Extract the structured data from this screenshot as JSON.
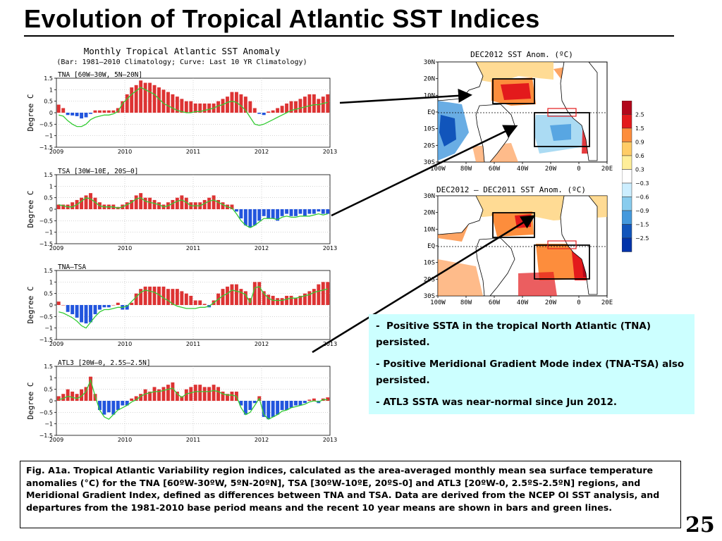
{
  "slide": {
    "title": "Evolution of Tropical Atlantic SST Indices",
    "page_number": "25"
  },
  "left_figure": {
    "title": "Monthly Tropical Atlantic SST Anomaly",
    "subtitle": "(Bar: 1981–2010 Climatology; Curve: Last 10 YR Climatology)",
    "ylabel": "Degree C"
  },
  "chart_data": [
    {
      "type": "bar",
      "panel_label": "TNA [60W–30W, 5N–20N]",
      "ylabel": "Degree C",
      "ylim": [
        -1.5,
        1.5
      ],
      "yticks": [
        1.5,
        1,
        0.5,
        0,
        -0.5,
        -1,
        -1.5
      ],
      "ytick_labels": [
        "1.5",
        "1",
        "0.5",
        "0",
        "−0.5",
        "−1",
        "−1.5"
      ],
      "xticks": [
        "2009",
        "2010",
        "2011",
        "2012",
        "2013"
      ],
      "grid": true,
      "positive_color": "#dd3333",
      "negative_color": "#2255dd",
      "line_color": "#33cc33",
      "series": [
        {
          "values": [
            0.35,
            0.2,
            -0.1,
            -0.12,
            -0.15,
            -0.25,
            -0.2,
            -0.05,
            0.1,
            0.1,
            0.1,
            0.1,
            0.1,
            0.2,
            0.5,
            0.8,
            1.1,
            1.2,
            1.4,
            1.3,
            1.3,
            1.2,
            1.1,
            1.0,
            0.9,
            0.8,
            0.7,
            0.6,
            0.5,
            0.5,
            0.4,
            0.4,
            0.4,
            0.4,
            0.4,
            0.5,
            0.6,
            0.7,
            0.9,
            0.9,
            0.8,
            0.7,
            0.5,
            0.2,
            -0.05,
            -0.1,
            0.05,
            0.1,
            0.2,
            0.3,
            0.4,
            0.5,
            0.5,
            0.6,
            0.7,
            0.8,
            0.8,
            0.6,
            0.7,
            0.8
          ]
        },
        {
          "values": [
            -0.1,
            -0.15,
            -0.35,
            -0.5,
            -0.6,
            -0.6,
            -0.5,
            -0.3,
            -0.2,
            -0.15,
            -0.1,
            -0.1,
            -0.05,
            0.05,
            0.4,
            0.6,
            0.8,
            0.95,
            1.1,
            1.0,
            0.9,
            0.8,
            0.6,
            0.4,
            0.3,
            0.2,
            0.1,
            0.05,
            0,
            0,
            0.05,
            0.05,
            0.1,
            0.15,
            0.2,
            0.3,
            0.35,
            0.45,
            0.5,
            0.45,
            0.3,
            0.1,
            -0.2,
            -0.5,
            -0.55,
            -0.5,
            -0.4,
            -0.3,
            -0.2,
            -0.1,
            0,
            0.1,
            0.15,
            0.2,
            0.25,
            0.3,
            0.35,
            0.35,
            0.4,
            0.45
          ]
        }
      ]
    },
    {
      "type": "bar",
      "panel_label": "TSA [30W–10E, 20S–0]",
      "ylabel": "Degree C",
      "ylim": [
        -1.5,
        1.5
      ],
      "yticks": [
        1.5,
        1,
        0.5,
        0,
        -0.5,
        -1,
        -1.5
      ],
      "ytick_labels": [
        "1.5",
        "1",
        "0.5",
        "0",
        "−0.5",
        "−1",
        "−1.5"
      ],
      "xticks": [
        "2009",
        "2010",
        "2011",
        "2012",
        "2013"
      ],
      "grid": true,
      "positive_color": "#dd3333",
      "negative_color": "#2255dd",
      "line_color": "#33cc33",
      "series": [
        {
          "values": [
            0.2,
            0.2,
            0.2,
            0.3,
            0.4,
            0.5,
            0.6,
            0.7,
            0.5,
            0.3,
            0.2,
            0.2,
            0.2,
            0.1,
            0.2,
            0.3,
            0.4,
            0.6,
            0.7,
            0.5,
            0.5,
            0.4,
            0.3,
            0.2,
            0.3,
            0.4,
            0.5,
            0.6,
            0.5,
            0.3,
            0.3,
            0.3,
            0.4,
            0.5,
            0.6,
            0.4,
            0.3,
            0.2,
            0.2,
            -0.1,
            -0.4,
            -0.7,
            -0.8,
            -0.7,
            -0.5,
            -0.3,
            -0.4,
            -0.4,
            -0.5,
            -0.3,
            -0.2,
            -0.3,
            -0.3,
            -0.2,
            -0.3,
            -0.2,
            -0.2,
            -0.1,
            -0.2,
            -0.2
          ]
        },
        {
          "values": [
            0.2,
            0.15,
            0.1,
            0.1,
            0.2,
            0.35,
            0.5,
            0.45,
            0.3,
            0.15,
            0.1,
            0.1,
            0.1,
            0.05,
            0.1,
            0.2,
            0.3,
            0.45,
            0.5,
            0.35,
            0.3,
            0.25,
            0.2,
            0.1,
            0.15,
            0.25,
            0.35,
            0.4,
            0.3,
            0.15,
            0.15,
            0.15,
            0.25,
            0.35,
            0.4,
            0.3,
            0.2,
            0.1,
            0.05,
            -0.2,
            -0.5,
            -0.7,
            -0.8,
            -0.7,
            -0.55,
            -0.4,
            -0.4,
            -0.4,
            -0.45,
            -0.35,
            -0.3,
            -0.35,
            -0.35,
            -0.3,
            -0.3,
            -0.3,
            -0.25,
            -0.2,
            -0.25,
            -0.2
          ]
        }
      ]
    },
    {
      "type": "bar",
      "panel_label": "TNA–TSA",
      "ylabel": "Degree C",
      "ylim": [
        -1.5,
        1.5
      ],
      "yticks": [
        1.5,
        1,
        0.5,
        0,
        -0.5,
        -1,
        -1.5
      ],
      "ytick_labels": [
        "1.5",
        "1",
        "0.5",
        "0",
        "−0.5",
        "−1",
        "−1.5"
      ],
      "xticks": [
        "2009",
        "2010",
        "2011",
        "2012",
        "2013"
      ],
      "grid": true,
      "positive_color": "#dd3333",
      "negative_color": "#2255dd",
      "line_color": "#33cc33",
      "series": [
        {
          "values": [
            0.15,
            0,
            -0.3,
            -0.4,
            -0.55,
            -0.75,
            -0.8,
            -0.75,
            -0.4,
            -0.2,
            -0.1,
            -0.1,
            0,
            0.1,
            -0.2,
            -0.2,
            0.1,
            0.5,
            0.7,
            0.8,
            0.8,
            0.8,
            0.8,
            0.8,
            0.7,
            0.7,
            0.7,
            0.6,
            0.5,
            0.4,
            0.2,
            0.2,
            0.05,
            -0.1,
            0.2,
            0.5,
            0.7,
            0.8,
            0.9,
            0.9,
            0.7,
            0.6,
            0.3,
            1.0,
            1.0,
            0.6,
            0.45,
            0.4,
            0.3,
            0.3,
            0.4,
            0.4,
            0.3,
            0.4,
            0.5,
            0.6,
            0.7,
            0.9,
            1.0,
            1.0
          ]
        },
        {
          "values": [
            -0.3,
            -0.35,
            -0.45,
            -0.55,
            -0.7,
            -0.9,
            -1.0,
            -0.75,
            -0.5,
            -0.3,
            -0.2,
            -0.2,
            -0.15,
            -0.1,
            -0.1,
            -0.05,
            0.15,
            0.35,
            0.55,
            0.65,
            0.6,
            0.55,
            0.45,
            0.3,
            0.2,
            0.05,
            -0.05,
            -0.1,
            -0.15,
            -0.15,
            -0.15,
            -0.1,
            -0.1,
            -0.05,
            0.1,
            0.25,
            0.4,
            0.5,
            0.65,
            0.6,
            0.55,
            0.45,
            0.1,
            0.75,
            0.8,
            0.5,
            0.3,
            0.2,
            0.2,
            0.2,
            0.25,
            0.3,
            0.3,
            0.35,
            0.4,
            0.45,
            0.55,
            0.6,
            0.65,
            0.7
          ]
        }
      ]
    },
    {
      "type": "bar",
      "panel_label": "ATL3 [20W–0, 2.5S–2.5N]",
      "ylabel": "Degree C",
      "ylim": [
        -1.5,
        1.5
      ],
      "yticks": [
        1.5,
        1,
        0.5,
        0,
        -0.5,
        -1,
        -1.5
      ],
      "ytick_labels": [
        "1.5",
        "1",
        "0.5",
        "0",
        "−0.5",
        "−1",
        "−1.5"
      ],
      "xticks": [
        "2009",
        "2010",
        "2011",
        "2012",
        "2013"
      ],
      "grid": true,
      "positive_color": "#dd3333",
      "negative_color": "#2255dd",
      "line_color": "#33cc33",
      "series": [
        {
          "values": [
            0.2,
            0.3,
            0.5,
            0.4,
            0.3,
            0.5,
            0.6,
            1.05,
            0.3,
            -0.4,
            -0.6,
            -0.5,
            -0.6,
            -0.4,
            -0.2,
            -0.2,
            0.1,
            0.2,
            0.3,
            0.5,
            0.4,
            0.6,
            0.5,
            0.6,
            0.7,
            0.8,
            0.4,
            0.2,
            0.5,
            0.6,
            0.7,
            0.7,
            0.6,
            0.6,
            0.7,
            0.6,
            0.4,
            0.3,
            0.4,
            0.4,
            -0.2,
            -0.6,
            -0.4,
            -0.1,
            0.2,
            -0.7,
            -0.8,
            -0.7,
            -0.6,
            -0.4,
            -0.4,
            -0.3,
            -0.2,
            -0.2,
            -0.1,
            0.05,
            0.1,
            -0.1,
            0.1,
            0.15
          ]
        },
        {
          "values": [
            0.05,
            0.1,
            0.2,
            0.15,
            0.1,
            0.2,
            0.4,
            0.9,
            0.2,
            -0.4,
            -0.7,
            -0.8,
            -0.6,
            -0.4,
            -0.3,
            -0.2,
            -0.05,
            0.05,
            0.2,
            0.3,
            0.35,
            0.4,
            0.4,
            0.45,
            0.5,
            0.55,
            0.3,
            0.15,
            0.3,
            0.35,
            0.4,
            0.4,
            0.4,
            0.4,
            0.45,
            0.4,
            0.3,
            0.25,
            0.25,
            0.2,
            -0.3,
            -0.6,
            -0.5,
            -0.2,
            0.1,
            -0.6,
            -0.8,
            -0.7,
            -0.6,
            -0.45,
            -0.4,
            -0.3,
            -0.25,
            -0.2,
            -0.15,
            -0.05,
            0,
            -0.05,
            0.05,
            0.05
          ]
        }
      ]
    }
  ],
  "maps": [
    {
      "title": "DEC2012 SST Anom. (ºC)",
      "lat_labels": [
        "30N",
        "20N",
        "10N",
        "EQ",
        "10S",
        "20S",
        "30S"
      ],
      "lon_labels": [
        "100W",
        "80W",
        "60W",
        "40W",
        "20W",
        "0",
        "20E"
      ]
    },
    {
      "title": "DEC2012 – DEC2011 SST Anom. (ºC)",
      "lat_labels": [
        "30N",
        "20N",
        "10N",
        "EQ",
        "10S",
        "20S",
        "30S"
      ],
      "lon_labels": [
        "100W",
        "80W",
        "60W",
        "40W",
        "20W",
        "0",
        "20E"
      ]
    }
  ],
  "colorbar": {
    "labels": [
      "2.5",
      "1.5",
      "0.9",
      "0.6",
      "0.3",
      "−0.3",
      "−0.6",
      "−0.9",
      "−1.5",
      "−2.5"
    ],
    "colors": [
      "#b2071b",
      "#e31a1c",
      "#fd8d3c",
      "#ffcc66",
      "#ffee99",
      "#ffffff",
      "#cceeff",
      "#88ccee",
      "#4499dd",
      "#1155bb",
      "#0033aa"
    ]
  },
  "bullets": [
    {
      "dash": "-",
      "text": "Positive SSTA in the tropical North Atlantic (TNA)  persisted."
    },
    {
      "dash": "-",
      "text": "Positive Meridional Gradient Mode index (TNA-TSA) also persisted."
    },
    {
      "dash": "-",
      "text": "ATL3 SSTA was near-normal since Jun 2012."
    }
  ],
  "caption": "Fig. A1a. Tropical Atlantic Variability region indices, calculated as the area-averaged monthly mean sea surface temperature anomalies (°C) for the TNA [60ºW-30ºW, 5ºN-20ºN], TSA [30ºW-10ºE, 20ºS-0] and ATL3 [20ºW-0, 2.5ºS-2.5ºN] regions, and Meridional Gradient Index, defined as differences between TNA and TSA. Data are derived from the NCEP OI SST analysis, and departures from the 1981-2010 base period means and the recent 10 year means are shown in bars and green lines."
}
